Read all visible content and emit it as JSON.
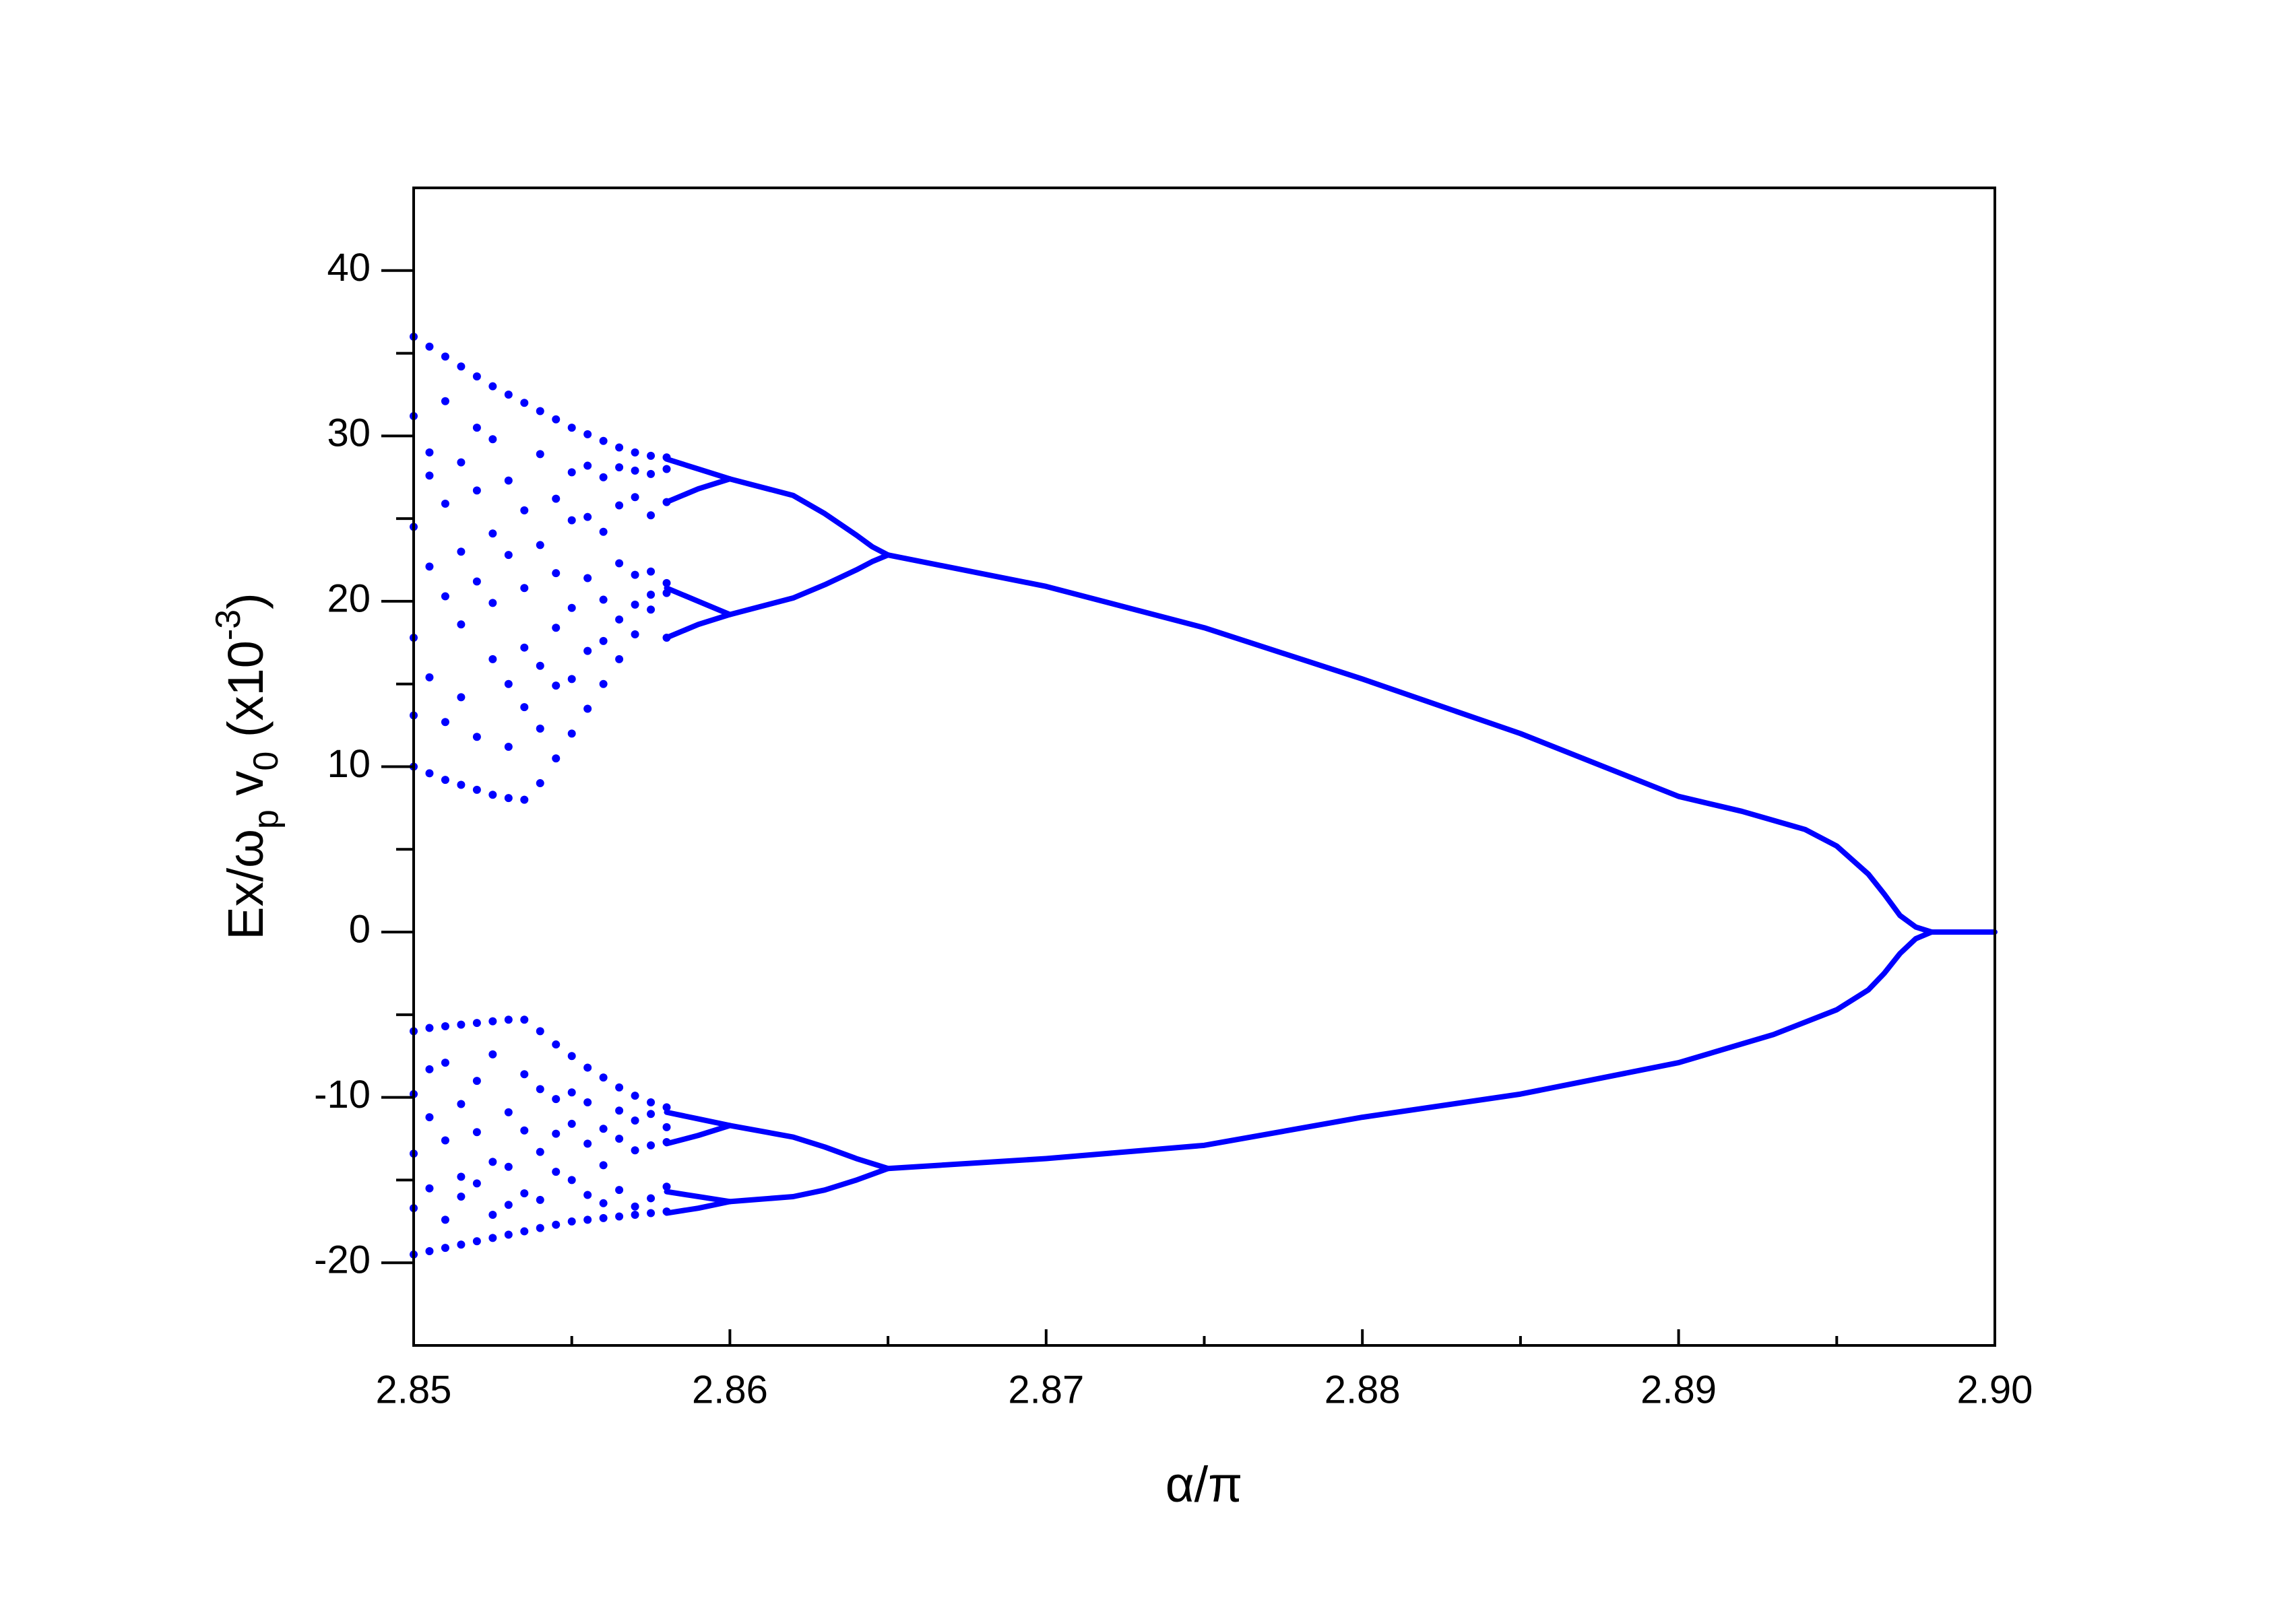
{
  "chart_data": {
    "type": "scatter",
    "xlabel": "α/π",
    "ylabel": [
      "Ex/ω",
      "p",
      " v",
      "0",
      " (x10",
      "-3",
      ")"
    ],
    "xlim": [
      2.85,
      2.9
    ],
    "ylim": [
      -25,
      45
    ],
    "xticks": [
      2.85,
      2.86,
      2.87,
      2.88,
      2.89,
      {
        "value": 2.9,
        "label": "2.90"
      }
    ],
    "yticks": [
      -20,
      -10,
      0,
      10,
      20,
      30,
      40
    ],
    "grid": false,
    "series": [
      {
        "color": "#0000ff",
        "x": [
          2.85,
          2.85,
          2.85,
          2.85,
          2.85,
          2.85,
          2.8505,
          2.8505,
          2.8505,
          2.8505,
          2.8505,
          2.8505,
          2.851,
          2.851,
          2.851,
          2.851,
          2.851,
          2.851,
          2.8515,
          2.8515,
          2.8515,
          2.8515,
          2.8515,
          2.8515,
          2.852,
          2.852,
          2.852,
          2.852,
          2.852,
          2.852,
          2.8525,
          2.8525,
          2.8525,
          2.8525,
          2.8525,
          2.8525,
          2.853,
          2.853,
          2.853,
          2.853,
          2.853,
          2.853,
          2.8535,
          2.8535,
          2.8535,
          2.8535,
          2.8535,
          2.8535,
          2.854,
          2.854,
          2.854,
          2.854,
          2.854,
          2.854,
          2.8545,
          2.8545,
          2.8545,
          2.8545,
          2.8545,
          2.8545,
          2.855,
          2.855,
          2.855,
          2.855,
          2.855,
          2.855,
          2.8555,
          2.8555,
          2.8555,
          2.8555,
          2.8555,
          2.8555,
          2.856,
          2.856,
          2.856,
          2.856,
          2.856,
          2.856,
          2.8565,
          2.8565,
          2.8565,
          2.8565,
          2.8565,
          2.8565,
          2.857,
          2.857,
          2.857,
          2.857,
          2.857,
          2.857,
          2.8575,
          2.8575,
          2.8575,
          2.8575,
          2.8575,
          2.8575,
          2.858,
          2.858,
          2.858,
          2.858,
          2.858,
          2.858
        ],
        "y": [
          36.0,
          10.0,
          31.2,
          24.5,
          17.8,
          13.1,
          35.4,
          9.6,
          29.0,
          22.1,
          15.4,
          27.6,
          34.8,
          9.2,
          32.1,
          20.3,
          12.7,
          25.9,
          34.2,
          8.9,
          28.4,
          18.6,
          23.0,
          14.2,
          33.6,
          8.6,
          30.5,
          26.7,
          21.2,
          11.8,
          33.0,
          8.3,
          29.8,
          16.5,
          19.9,
          24.1,
          32.5,
          8.1,
          27.3,
          22.8,
          15.0,
          11.2,
          32.0,
          8.0,
          25.5,
          17.2,
          20.8,
          13.6,
          31.5,
          9.0,
          28.9,
          23.4,
          16.1,
          12.3,
          31.0,
          10.5,
          26.2,
          21.7,
          18.4,
          14.9,
          30.5,
          12.0,
          27.8,
          24.9,
          19.6,
          15.3,
          30.1,
          13.5,
          28.2,
          25.1,
          21.4,
          17.0,
          29.7,
          15.0,
          27.5,
          24.2,
          20.1,
          17.6,
          29.3,
          16.5,
          28.1,
          25.8,
          22.3,
          18.9,
          29.0,
          18.0,
          27.9,
          26.3,
          21.6,
          19.8,
          28.8,
          19.5,
          27.7,
          25.2,
          21.8,
          20.4,
          28.7,
          20.5,
          28.0,
          26.0,
          21.1,
          17.8
        ]
      },
      {
        "color": "#0000ff",
        "x": [
          2.85,
          2.85,
          2.85,
          2.85,
          2.85,
          2.8505,
          2.8505,
          2.8505,
          2.8505,
          2.8505,
          2.851,
          2.851,
          2.851,
          2.851,
          2.851,
          2.8515,
          2.8515,
          2.8515,
          2.8515,
          2.8515,
          2.852,
          2.852,
          2.852,
          2.852,
          2.852,
          2.8525,
          2.8525,
          2.8525,
          2.8525,
          2.8525,
          2.853,
          2.853,
          2.853,
          2.853,
          2.853,
          2.8535,
          2.8535,
          2.8535,
          2.8535,
          2.8535,
          2.854,
          2.854,
          2.854,
          2.854,
          2.854,
          2.8545,
          2.8545,
          2.8545,
          2.8545,
          2.8545,
          2.855,
          2.855,
          2.855,
          2.855,
          2.855,
          2.8555,
          2.8555,
          2.8555,
          2.8555,
          2.8555,
          2.856,
          2.856,
          2.856,
          2.856,
          2.856,
          2.8565,
          2.8565,
          2.8565,
          2.8565,
          2.8565,
          2.857,
          2.857,
          2.857,
          2.857,
          2.857,
          2.8575,
          2.8575,
          2.8575,
          2.8575,
          2.8575,
          2.858,
          2.858,
          2.858,
          2.858,
          2.858
        ],
        "y": [
          -6.0,
          -19.5,
          -9.8,
          -13.4,
          -16.7,
          -5.8,
          -19.3,
          -11.2,
          -15.5,
          -8.3,
          -5.7,
          -19.1,
          -7.9,
          -12.6,
          -17.4,
          -5.6,
          -18.9,
          -10.4,
          -14.8,
          -16.0,
          -5.5,
          -18.7,
          -12.1,
          -9.0,
          -15.2,
          -5.4,
          -18.5,
          -7.4,
          -13.9,
          -17.1,
          -5.3,
          -18.3,
          -10.9,
          -14.2,
          -16.5,
          -5.3,
          -18.1,
          -8.6,
          -12.0,
          -15.8,
          -6.0,
          -17.9,
          -9.5,
          -13.3,
          -16.2,
          -6.8,
          -17.7,
          -10.1,
          -14.5,
          -12.2,
          -7.5,
          -17.5,
          -11.6,
          -15.0,
          -9.7,
          -8.2,
          -17.4,
          -12.8,
          -15.9,
          -10.3,
          -8.8,
          -17.3,
          -11.9,
          -16.4,
          -14.1,
          -9.4,
          -17.2,
          -12.5,
          -15.6,
          -10.8,
          -9.9,
          -17.1,
          -11.4,
          -16.6,
          -13.2,
          -10.3,
          -17.0,
          -12.9,
          -16.1,
          -11.0,
          -10.6,
          -16.9,
          -11.8,
          -15.4,
          -12.7
        ]
      },
      {
        "color": "#0000ff",
        "type": "line",
        "x": [
          2.865,
          2.87,
          2.875,
          2.88,
          2.885,
          2.89,
          2.892,
          2.894,
          2.895,
          2.896,
          2.8965,
          2.897,
          2.8975,
          2.898,
          2.9
        ],
        "y": [
          22.8,
          20.9,
          18.4,
          15.3,
          12.0,
          8.2,
          7.3,
          6.2,
          5.2,
          3.5,
          2.3,
          1.0,
          0.3,
          0,
          0
        ]
      },
      {
        "color": "#0000ff",
        "type": "line",
        "x": [
          2.865,
          2.87,
          2.875,
          2.88,
          2.885,
          2.89,
          2.893,
          2.895,
          2.896,
          2.8965,
          2.897,
          2.8975,
          2.898
        ],
        "y": [
          -14.3,
          -13.7,
          -12.9,
          -11.2,
          -9.8,
          -7.9,
          -6.2,
          -4.7,
          -3.5,
          -2.5,
          -1.3,
          -0.4,
          0
        ]
      },
      {
        "color": "#0000ff",
        "type": "line",
        "x": [
          2.86,
          2.862,
          2.863,
          2.864,
          2.8645,
          2.865
        ],
        "y": [
          27.4,
          26.4,
          25.3,
          24.0,
          23.3,
          22.8
        ]
      },
      {
        "color": "#0000ff",
        "type": "line",
        "x": [
          2.86,
          2.862,
          2.863,
          2.864,
          2.8645,
          2.865
        ],
        "y": [
          19.2,
          20.2,
          21.0,
          21.9,
          22.4,
          22.8
        ]
      },
      {
        "color": "#0000ff",
        "type": "line",
        "x": [
          2.86,
          2.862,
          2.863,
          2.864,
          2.865
        ],
        "y": [
          -11.7,
          -12.4,
          -13.0,
          -13.7,
          -14.3
        ]
      },
      {
        "color": "#0000ff",
        "type": "line",
        "x": [
          2.86,
          2.862,
          2.863,
          2.864,
          2.865
        ],
        "y": [
          -16.3,
          -16.0,
          -15.6,
          -15.0,
          -14.3
        ]
      },
      {
        "color": "#0000ff",
        "type": "line",
        "x": [
          2.858,
          2.859,
          2.86
        ],
        "y": [
          28.6,
          28.0,
          27.4
        ]
      },
      {
        "color": "#0000ff",
        "type": "line",
        "x": [
          2.858,
          2.859,
          2.86
        ],
        "y": [
          26.0,
          26.8,
          27.4
        ]
      },
      {
        "color": "#0000ff",
        "type": "line",
        "x": [
          2.858,
          2.859,
          2.86
        ],
        "y": [
          20.8,
          20.0,
          19.2
        ]
      },
      {
        "color": "#0000ff",
        "type": "line",
        "x": [
          2.858,
          2.859,
          2.86
        ],
        "y": [
          17.8,
          18.6,
          19.2
        ]
      },
      {
        "color": "#0000ff",
        "type": "line",
        "x": [
          2.858,
          2.859,
          2.86
        ],
        "y": [
          -10.9,
          -11.3,
          -11.7
        ]
      },
      {
        "color": "#0000ff",
        "type": "line",
        "x": [
          2.858,
          2.859,
          2.86
        ],
        "y": [
          -12.8,
          -12.3,
          -11.7
        ]
      },
      {
        "color": "#0000ff",
        "type": "line",
        "x": [
          2.858,
          2.859,
          2.86
        ],
        "y": [
          -15.7,
          -16.0,
          -16.3
        ]
      },
      {
        "color": "#0000ff",
        "type": "line",
        "x": [
          2.858,
          2.859,
          2.86
        ],
        "y": [
          -17.0,
          -16.7,
          -16.3
        ]
      }
    ]
  }
}
